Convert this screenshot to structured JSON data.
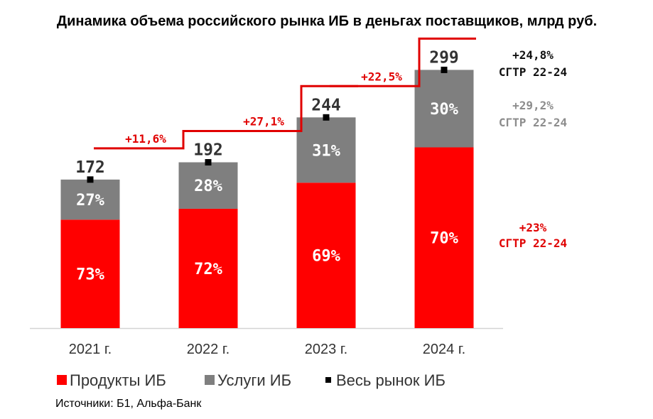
{
  "chart_data": {
    "type": "bar",
    "stacked": true,
    "title": "Динамика объема российского рынка ИБ в деньгах поставщиков, млрд руб.",
    "categories": [
      "2021 г.",
      "2022 г.",
      "2023 г.",
      "2024 г."
    ],
    "totals": [
      172,
      192,
      244,
      299
    ],
    "total_labels": [
      "172",
      "192",
      "244",
      "299"
    ],
    "series": [
      {
        "name": "Продукты ИБ",
        "color": "#ff0000",
        "share_labels": [
          "73%",
          "72%",
          "69%",
          "70%"
        ],
        "values": [
          125.6,
          138.2,
          168.4,
          209.3
        ]
      },
      {
        "name": "Услуги ИБ",
        "color": "#7f7f7f",
        "share_labels": [
          "27%",
          "28%",
          "31%",
          "30%"
        ],
        "values": [
          46.4,
          53.8,
          75.6,
          89.7
        ]
      }
    ],
    "growth_labels": [
      "+11,6%",
      "+27,1%",
      "+22,5%"
    ],
    "growth_color": "#e00000",
    "cagr_notes": [
      {
        "pct": "+24,8%",
        "label": "СГТР 22-24",
        "color": "#111111",
        "level": "total"
      },
      {
        "pct": "+29,2%",
        "label": "СГТР 22-24",
        "color": "#8c8c8c",
        "level": "services"
      },
      {
        "pct": "+23%",
        "label": "СГТР 22-24",
        "color": "#e00000",
        "level": "products"
      }
    ],
    "legend": [
      {
        "label": "Продукты ИБ",
        "color": "#ff0000",
        "marker": "square"
      },
      {
        "label": "Услуги ИБ",
        "color": "#7f7f7f",
        "marker": "square"
      },
      {
        "label": "Весь рынок ИБ",
        "color": "#000000",
        "marker": "small-square"
      }
    ],
    "legend_position": "bottom",
    "ylim": [
      0,
      310
    ],
    "grid": false,
    "source": "Источники: Б1, Альфа-Банк"
  }
}
